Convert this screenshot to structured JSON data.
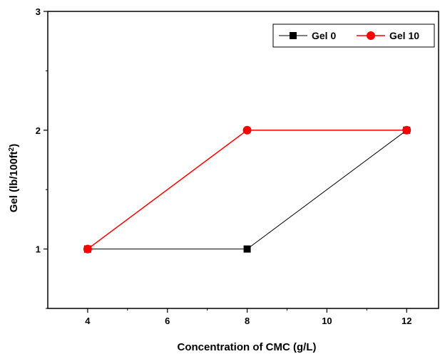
{
  "chart_data": {
    "type": "line",
    "xlabel": "Concentration of CMC (g/L)",
    "ylabel_main": "Gel (lb/100ft",
    "ylabel_sup": "2",
    "ylabel_end": ")",
    "xlim": [
      3,
      12.8
    ],
    "ylim": [
      0.5,
      3
    ],
    "x_ticks": [
      4,
      6,
      8,
      10,
      12
    ],
    "y_ticks": [
      1,
      2,
      3
    ],
    "grid": false,
    "legend_position": "top-right",
    "series": [
      {
        "name": "Gel 0",
        "x": [
          4,
          8,
          12
        ],
        "y": [
          1,
          1,
          2
        ],
        "color": "#000000",
        "marker": "square"
      },
      {
        "name": "Gel 10",
        "x": [
          4,
          8,
          12
        ],
        "y": [
          1,
          2,
          2
        ],
        "color": "#ff0000",
        "marker": "circle"
      }
    ]
  }
}
